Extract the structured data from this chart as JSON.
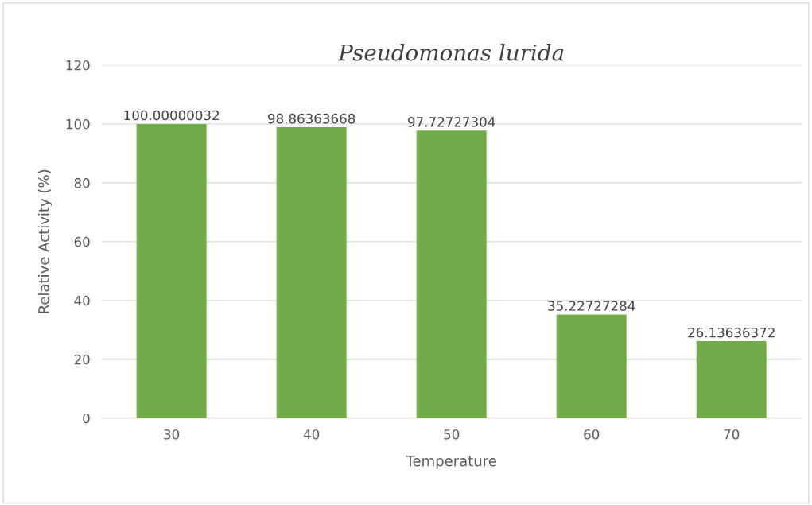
{
  "chart_data": {
    "type": "bar",
    "title": "Pseudomonas lurida",
    "xlabel": "Temperature",
    "ylabel": "Relative Activity (%)",
    "categories": [
      "30",
      "40",
      "50",
      "60",
      "70"
    ],
    "values": [
      100.00000032,
      98.86363668,
      97.72727304,
      35.22727284,
      26.13636372
    ],
    "color": "#70ad47",
    "ylim": [
      0,
      120
    ],
    "yticks": [
      0,
      20,
      40,
      60,
      80,
      100,
      120
    ],
    "grid": "y",
    "data_labels": true,
    "legend": false
  }
}
